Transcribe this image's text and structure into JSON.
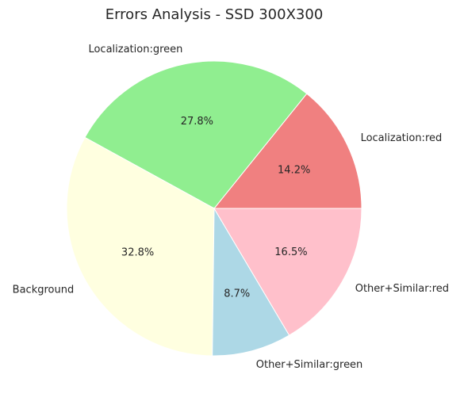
{
  "chart_data": {
    "type": "pie",
    "title": "Errors Analysis - SSD 300X300",
    "start_angle_deg": 0,
    "direction": "counterclockwise",
    "slices": [
      {
        "label": "Localization:red",
        "percent": 14.2,
        "pct_label": "14.2%",
        "color": "#f08080"
      },
      {
        "label": "Localization:green",
        "percent": 27.8,
        "pct_label": "27.8%",
        "color": "#90ee90"
      },
      {
        "label": "Background",
        "percent": 32.8,
        "pct_label": "32.8%",
        "color": "#ffffe0"
      },
      {
        "label": "Other+Similar:green",
        "percent": 8.7,
        "pct_label": "8.7%",
        "color": "#add8e6"
      },
      {
        "label": "Other+Similar:red",
        "percent": 16.5,
        "pct_label": "16.5%",
        "color": "#ffc0cb"
      }
    ]
  }
}
